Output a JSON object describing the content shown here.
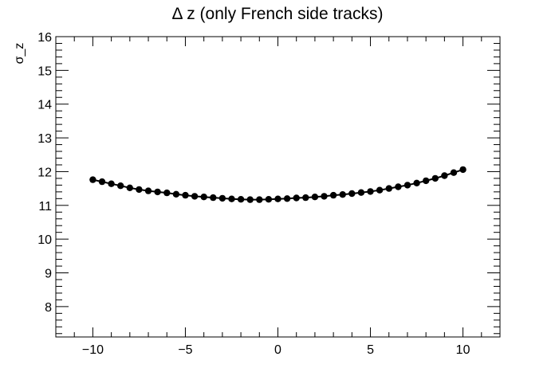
{
  "chart_data": {
    "type": "line",
    "title": "Δ z (only French side tracks)",
    "xlabel": "",
    "ylabel": "σ_z",
    "xlim": [
      -12,
      12
    ],
    "ylim": [
      7.1,
      16
    ],
    "grid": false,
    "legend": "none",
    "x_ticks": [
      -10,
      -5,
      0,
      5,
      10
    ],
    "x_tick_labels": [
      "−10",
      "−5",
      "0",
      "5",
      "10"
    ],
    "y_ticks": [
      8,
      9,
      10,
      11,
      12,
      13,
      14,
      15,
      16
    ],
    "y_tick_labels": [
      "8",
      "9",
      "10",
      "11",
      "12",
      "13",
      "14",
      "15",
      "16"
    ],
    "marker_color": "#000000",
    "series": [
      {
        "x": [
          -10,
          -9.5,
          -9,
          -8.5,
          -8,
          -7.5,
          -7,
          -6.5,
          -6,
          -5.5,
          -5,
          -4.5,
          -4,
          -3.5,
          -3,
          -2.5,
          -2,
          -1.5,
          -1,
          -0.5,
          0,
          0.5,
          1,
          1.5,
          2,
          2.5,
          3,
          3.5,
          4,
          4.5,
          5,
          5.5,
          6,
          6.5,
          7,
          7.5,
          8,
          8.5,
          9,
          9.5,
          10
        ],
        "y": [
          11.76,
          11.7,
          11.64,
          11.58,
          11.52,
          11.47,
          11.43,
          11.4,
          11.37,
          11.33,
          11.3,
          11.27,
          11.25,
          11.23,
          11.21,
          11.19,
          11.18,
          11.17,
          11.17,
          11.18,
          11.19,
          11.2,
          11.22,
          11.23,
          11.25,
          11.27,
          11.3,
          11.32,
          11.35,
          11.38,
          11.41,
          11.45,
          11.5,
          11.55,
          11.6,
          11.66,
          11.73,
          11.8,
          11.88,
          11.97,
          12.06
        ]
      }
    ]
  }
}
